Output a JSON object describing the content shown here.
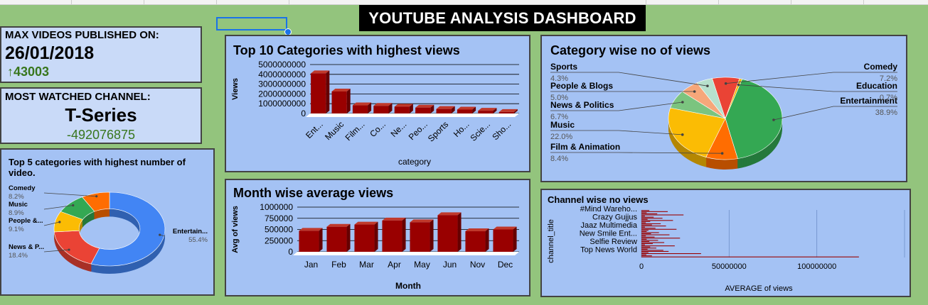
{
  "dashboard_title": "YOUTUBE ANALYSIS DASHBOARD",
  "colors": {
    "background": "#93c47d",
    "panel": "#a4c2f4",
    "kpi_panel": "#c9daf8",
    "bar": "#990000",
    "up_green": "#38761d"
  },
  "kpi_max_videos": {
    "label": "MAX VIDEOS PUBLISHED ON:",
    "date": "26/01/2018",
    "arrow": "↑",
    "value": "43003"
  },
  "kpi_channel": {
    "label": "MOST WATCHED CHANNEL:",
    "channel": "T-Series",
    "value": "-492076875"
  },
  "chart_data": [
    {
      "id": "top10",
      "type": "bar",
      "title": "Top 10 Categories with highest views",
      "xlabel": "category",
      "ylabel": "Views",
      "categories": [
        "Ent...",
        "Music",
        "Film...",
        "Co...",
        "Ne...",
        "Peo...",
        "Sports",
        "Ho...",
        "Scie...",
        "Sho..."
      ],
      "values": [
        4100000000,
        2250000000,
        830000000,
        780000000,
        700000000,
        600000000,
        460000000,
        400000000,
        280000000,
        150000000
      ],
      "yticks": [
        0,
        1000000000,
        2000000000,
        3000000000,
        4000000000,
        5000000000
      ],
      "ytick_labels": [
        "0",
        "1000000000",
        "2000000000",
        "3000000000",
        "4000000000",
        "5000000000"
      ],
      "ylim": [
        0,
        5000000000
      ]
    },
    {
      "id": "catpie",
      "type": "pie",
      "title": "Category wise no of views",
      "slices": [
        {
          "label": "Entertainment",
          "pct": "38.9%",
          "value": 38.9,
          "color": "#34a853"
        },
        {
          "label": "Film & Animation",
          "pct": "8.4%",
          "value": 8.4,
          "color": "#ff6d01"
        },
        {
          "label": "Music",
          "pct": "22.0%",
          "value": 22.0,
          "color": "#fbbc04"
        },
        {
          "label": "News & Politics",
          "pct": "6.7%",
          "value": 6.7,
          "color": "#7bc47f"
        },
        {
          "label": "People & Blogs",
          "pct": "5.0%",
          "value": 5.0,
          "color": "#f6a77a"
        },
        {
          "label": "Sports",
          "pct": "4.3%",
          "value": 4.3,
          "color": "#b7e1cd"
        },
        {
          "label": "Comedy",
          "pct": "7.2%",
          "value": 7.2,
          "color": "#ea4335"
        },
        {
          "label": "Education",
          "pct": "0.7%",
          "value": 0.7,
          "color": "#f4b400"
        }
      ]
    },
    {
      "id": "top5",
      "type": "pie",
      "title": "Top 5 categories with highest number of video.",
      "slices": [
        {
          "label": "Entertain...",
          "pct": "55.4%",
          "value": 55.4,
          "color": "#4285f4"
        },
        {
          "label": "News & P...",
          "pct": "18.4%",
          "value": 18.4,
          "color": "#ea4335"
        },
        {
          "label": "People &...",
          "pct": "9.1%",
          "value": 9.1,
          "color": "#fbbc04"
        },
        {
          "label": "Music",
          "pct": "8.9%",
          "value": 8.9,
          "color": "#34a853"
        },
        {
          "label": "Comedy",
          "pct": "8.2%",
          "value": 8.2,
          "color": "#ff6d01"
        }
      ]
    },
    {
      "id": "month",
      "type": "bar",
      "title": "Month wise average views",
      "xlabel": "Month",
      "ylabel": "Avg of views",
      "categories": [
        "Jan",
        "Feb",
        "Mar",
        "Apr",
        "May",
        "Jun",
        "Nov",
        "Dec"
      ],
      "values": [
        470000,
        560000,
        610000,
        700000,
        660000,
        820000,
        460000,
        500000
      ],
      "yticks": [
        0,
        250000,
        500000,
        750000,
        1000000
      ],
      "ytick_labels": [
        "0",
        "250000",
        "500000",
        "750000",
        "1000000"
      ],
      "ylim": [
        0,
        1000000
      ]
    },
    {
      "id": "channel",
      "type": "bar",
      "orientation": "horizontal",
      "title": "Channel wise no views",
      "xlabel": "AVERAGE of views",
      "ylabel": "channel_title",
      "shown_labels": [
        "#Mind Wareho...",
        "Crazy Gujjus",
        "Jaaz Multimedia",
        "New Smile Ent...",
        "Selfie Review",
        "Top News World"
      ],
      "xticks": [
        0,
        50000000,
        100000000
      ],
      "xtick_labels": [
        "0",
        "50000000",
        "100000000"
      ],
      "xlim": [
        0,
        150000000
      ],
      "values": [
        4500000,
        15000000,
        3000000,
        9000000,
        24000000,
        2000000,
        7000000,
        12000000,
        3500000,
        18000000,
        5000000,
        2500000,
        11000000,
        6000000,
        14000000,
        2000000,
        8000000,
        20000000,
        4000000,
        3000000,
        10000000,
        5500000,
        16000000,
        2500000,
        7500000,
        22000000,
        3000000,
        9500000,
        4500000,
        13000000,
        6500000,
        2000000,
        19000000,
        5000000,
        8500000,
        3500000,
        12500000,
        15500000,
        4000000,
        34000000,
        2800000,
        6000000,
        124000000
      ]
    }
  ]
}
